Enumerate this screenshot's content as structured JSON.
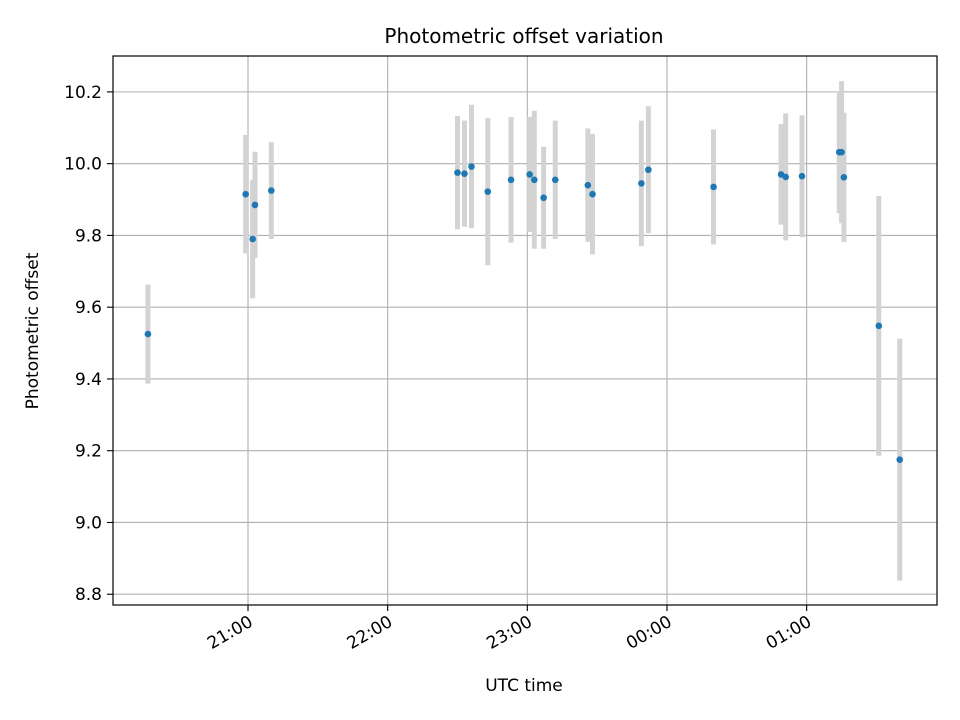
{
  "chart_data": {
    "type": "scatter",
    "title": "Photometric offset variation",
    "xlabel": "UTC time",
    "ylabel": "Photometric offset",
    "x_axis_kind": "time",
    "xlim": [
      "20:02",
      "01:56"
    ],
    "ylim": [
      8.77,
      10.3
    ],
    "grid": true,
    "x_ticks": [
      {
        "time": "21:00",
        "label": "21:00"
      },
      {
        "time": "22:00",
        "label": "22:00"
      },
      {
        "time": "23:00",
        "label": "23:00"
      },
      {
        "time": "00:00",
        "label": "00:00"
      },
      {
        "time": "01:00",
        "label": "01:00"
      }
    ],
    "y_ticks": [
      {
        "value": 8.8,
        "label": "8.8"
      },
      {
        "value": 9.0,
        "label": "9.0"
      },
      {
        "value": 9.2,
        "label": "9.2"
      },
      {
        "value": 9.4,
        "label": "9.4"
      },
      {
        "value": 9.6,
        "label": "9.6"
      },
      {
        "value": 9.8,
        "label": "9.8"
      },
      {
        "value": 10.0,
        "label": "10.0"
      },
      {
        "value": 10.2,
        "label": "10.2"
      }
    ],
    "point_color": "#1f77b4",
    "errorbar_color": "#d3d3d3",
    "points": [
      {
        "time": "20:17",
        "y": 9.525,
        "err": 0.138
      },
      {
        "time": "20:59",
        "y": 9.915,
        "err": 0.165
      },
      {
        "time": "21:02",
        "y": 9.79,
        "err": 0.165
      },
      {
        "time": "21:03",
        "y": 9.885,
        "err": 0.148
      },
      {
        "time": "21:10",
        "y": 9.925,
        "err": 0.135
      },
      {
        "time": "22:30",
        "y": 9.975,
        "err": 0.158
      },
      {
        "time": "22:33",
        "y": 9.972,
        "err": 0.148
      },
      {
        "time": "22:36",
        "y": 9.992,
        "err": 0.172
      },
      {
        "time": "22:43",
        "y": 9.922,
        "err": 0.205
      },
      {
        "time": "22:53",
        "y": 9.955,
        "err": 0.175
      },
      {
        "time": "23:01",
        "y": 9.97,
        "err": 0.16
      },
      {
        "time": "23:03",
        "y": 9.955,
        "err": 0.192
      },
      {
        "time": "23:07",
        "y": 9.905,
        "err": 0.142
      },
      {
        "time": "23:12",
        "y": 9.955,
        "err": 0.165
      },
      {
        "time": "23:26",
        "y": 9.94,
        "err": 0.158
      },
      {
        "time": "23:28",
        "y": 9.915,
        "err": 0.168
      },
      {
        "time": "23:49",
        "y": 9.945,
        "err": 0.175
      },
      {
        "time": "23:52",
        "y": 9.983,
        "err": 0.177
      },
      {
        "time": "00:20",
        "y": 9.935,
        "err": 0.16
      },
      {
        "time": "00:49",
        "y": 9.97,
        "err": 0.14
      },
      {
        "time": "00:51",
        "y": 9.963,
        "err": 0.177
      },
      {
        "time": "00:58",
        "y": 9.965,
        "err": 0.17
      },
      {
        "time": "01:14",
        "y": 10.032,
        "err": 0.17
      },
      {
        "time": "01:15",
        "y": 10.032,
        "err": 0.198
      },
      {
        "time": "01:16",
        "y": 9.962,
        "err": 0.18
      },
      {
        "time": "01:31",
        "y": 9.548,
        "err": 0.362
      },
      {
        "time": "01:40",
        "y": 9.175,
        "err": 0.337
      }
    ]
  }
}
